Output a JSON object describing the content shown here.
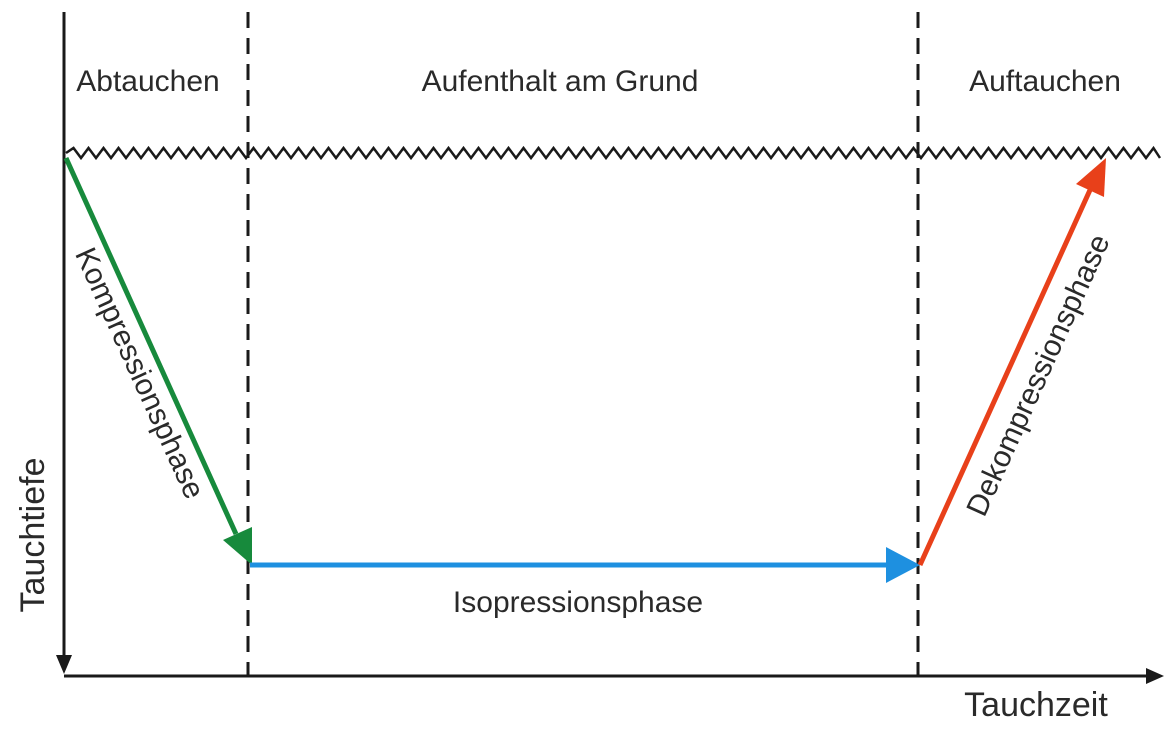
{
  "sections": {
    "descent": "Abtauchen",
    "bottom": "Aufenthalt am Grund",
    "ascent": "Auftauchen"
  },
  "phases": {
    "compression": "Kompressionsphase",
    "isopression": "Isopressionsphase",
    "decompression": "Dekompressionsphase"
  },
  "axes": {
    "y_label": "Tauchtiefe",
    "x_label": "Tauchzeit"
  },
  "colors": {
    "compression": "#178a3c",
    "isopression": "#1e90e0",
    "decompression": "#e8401a",
    "lines": "#1a1a1a"
  }
}
